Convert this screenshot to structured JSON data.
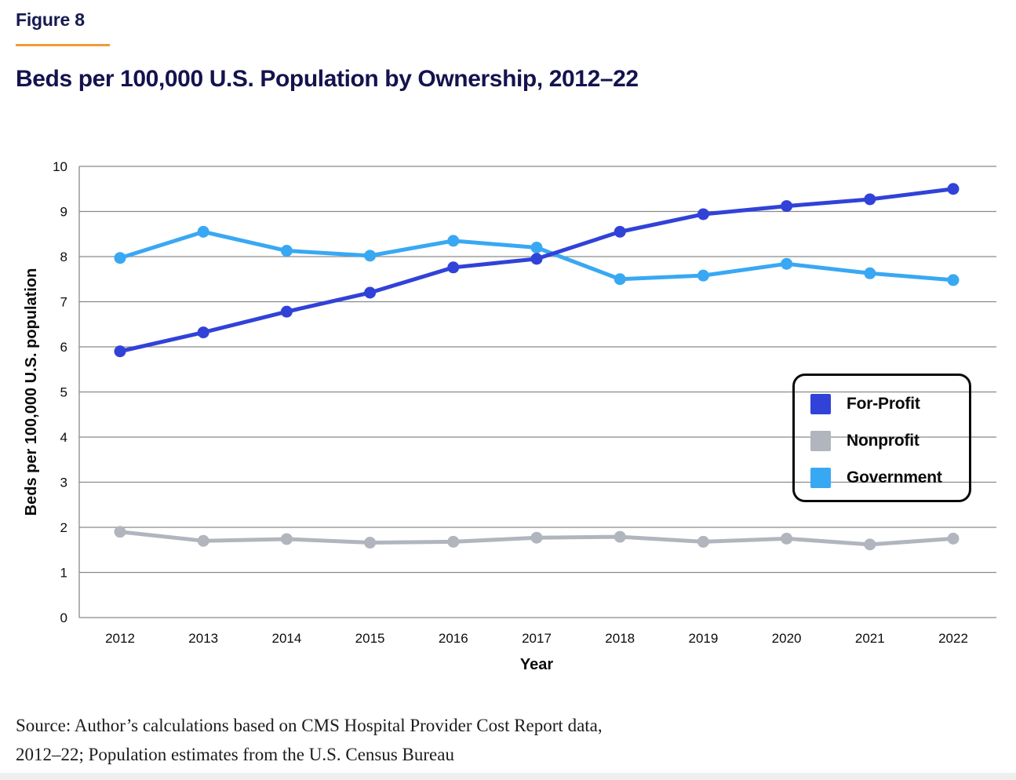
{
  "figure": {
    "label": "Figure 8",
    "title": "Beds per 100,000 U.S. Population by Ownership, 2012–22"
  },
  "source": {
    "line1": "Source: Author’s calculations based on CMS Hospital Provider Cost Report data,",
    "line2": "2012–22; Population estimates from the U.S. Census Bureau"
  },
  "colors": {
    "title_navy": "#14134e",
    "accent_orange": "#f09b38",
    "gridline": "#8a8a8a",
    "for_profit_blue": "#3142d8",
    "nonprofit_gray": "#b1b5bd",
    "government_blue": "#39a8f3",
    "bottom_bar_gray": "#eeeeee"
  },
  "chart_data": {
    "type": "line",
    "title": "Beds per 100,000 U.S. Population by Ownership, 2012–22",
    "xlabel": "Year",
    "ylabel": "Beds per 100,000 U.S. population",
    "ylim": [
      0,
      10
    ],
    "ytick_step": 1,
    "grid": true,
    "legend_position": "right-middle",
    "x": [
      "2012",
      "2013",
      "2014",
      "2015",
      "2016",
      "2017",
      "2018",
      "2019",
      "2020",
      "2021",
      "2022"
    ],
    "series": [
      {
        "name": "For-Profit",
        "color": "#3142d8",
        "values": [
          5.9,
          6.32,
          6.78,
          7.2,
          7.76,
          7.95,
          8.55,
          8.94,
          9.12,
          9.27,
          9.5
        ]
      },
      {
        "name": "Nonprofit",
        "color": "#b1b5bd",
        "values": [
          1.9,
          1.7,
          1.74,
          1.66,
          1.68,
          1.77,
          1.79,
          1.68,
          1.75,
          1.62,
          1.75
        ]
      },
      {
        "name": "Government",
        "color": "#39a8f3",
        "values": [
          7.97,
          8.55,
          8.13,
          8.02,
          8.35,
          8.2,
          7.5,
          7.58,
          7.84,
          7.63,
          7.48
        ]
      }
    ],
    "draw_order": [
      "Government",
      "Nonprofit",
      "For-Profit"
    ]
  }
}
